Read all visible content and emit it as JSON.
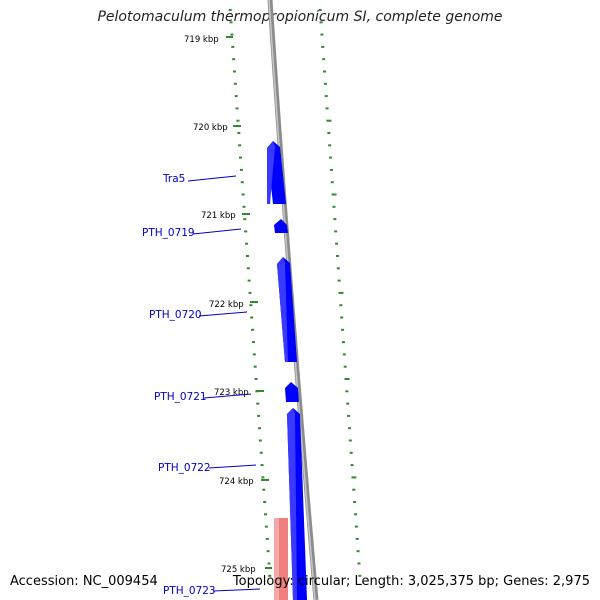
{
  "title": "Pelotomaculum thermopropionicum SI, complete genome",
  "footer": {
    "accession": "Accession: NC_009454",
    "summary": "Topology: circular; Length: 3,025,375 bp; Genes: 2,975"
  },
  "colors": {
    "backbone": "#8c8c8c",
    "cds_forward": "#0000ff",
    "cds_partial": "#f08080",
    "gc_dots": "#2e8b2e",
    "label_line": "#0000c8"
  },
  "ticks": [
    "719 kbp",
    "720 kbp",
    "721 kbp",
    "722 kbp",
    "723 kbp",
    "724 kbp",
    "725 kbp"
  ],
  "genes": [
    {
      "label": "Tra5",
      "kind": "cds"
    },
    {
      "label": "PTH_0719",
      "kind": "cds"
    },
    {
      "label": "PTH_0720",
      "kind": "cds"
    },
    {
      "label": "PTH_0721",
      "kind": "cds"
    },
    {
      "label": "PTH_0722",
      "kind": "cds"
    },
    {
      "label": "PTH_0723",
      "kind": "partial"
    }
  ]
}
